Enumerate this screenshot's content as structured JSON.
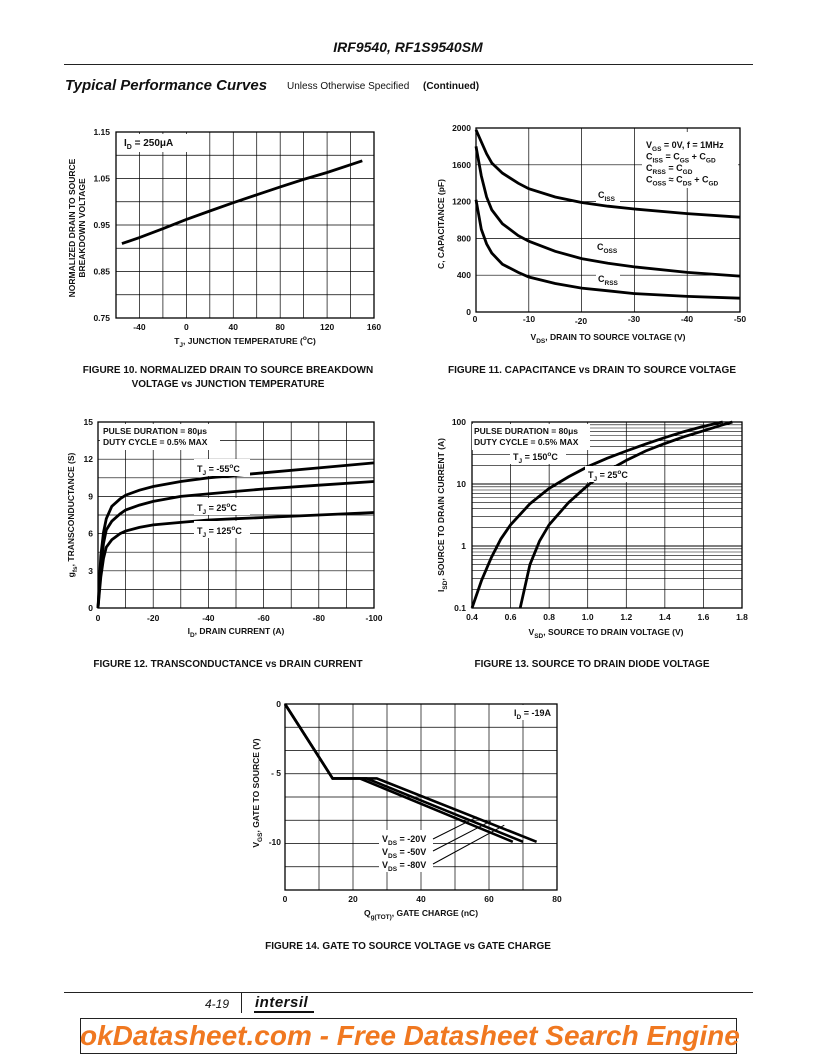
{
  "header": {
    "title": "IRF9540, RF1S9540SM"
  },
  "section": {
    "title": "Typical Performance Curves",
    "subtitle": "Unless Otherwise Specified",
    "continued": "(Continued)"
  },
  "fig10": {
    "caption": "FIGURE 10.  NORMALIZED DRAIN TO SOURCE BREAKDOWN\nVOLTAGE vs JUNCTION TEMPERATURE",
    "ylabel1": "NORMALIZED DRAIN TO SOURCE",
    "ylabel2": "BREAKDOWN VOLTAGE",
    "xlabel_prefix": "T",
    "xlabel_sub": "J",
    "xlabel_mid": ", JUNCTION TEMPERATURE (",
    "xlabel_sup": "o",
    "xlabel_end": "C)",
    "annot_prefix": "I",
    "annot_sub": "D",
    "annot_end": " = 250μA",
    "yticks": [
      "1.15",
      "1.05",
      "0.95",
      "0.85",
      "0.75"
    ],
    "xticks": [
      "-40",
      "0",
      "40",
      "80",
      "120",
      "160"
    ]
  },
  "fig11": {
    "caption": "FIGURE 11.  CAPACITANCE vs DRAIN TO SOURCE VOLTAGE",
    "ylabel": "C, CAPACITANCE (pF)",
    "xlabel_prefix": "V",
    "xlabel_sub": "DS",
    "xlabel_end": ", DRAIN TO SOURCE VOLTAGE (V)",
    "yticks": [
      "2000",
      "1600",
      "1200",
      "800",
      "400",
      "0"
    ],
    "xticks": [
      "0",
      "-10",
      "-20",
      "-30",
      "-40",
      "-50"
    ],
    "legend": [
      {
        "a": "V",
        "as": "GS",
        "b": " = 0V, f = 1MHz"
      },
      {
        "a": "C",
        "as": "ISS",
        "b": " = C",
        "bs": "GS",
        "c": " + C",
        "cs": "GD"
      },
      {
        "a": "C",
        "as": "RSS",
        "b": " = C",
        "bs": "GD"
      },
      {
        "a": "C",
        "as": "OSS",
        "b": " ≈ C",
        "bs": "DS",
        "c": " + C",
        "cs": "GD"
      }
    ],
    "curve_labels": [
      {
        "a": "C",
        "as": "ISS"
      },
      {
        "a": "C",
        "as": "OSS"
      },
      {
        "a": "C",
        "as": "RSS"
      }
    ]
  },
  "fig12": {
    "caption": "FIGURE 12.  TRANSCONDUCTANCE vs DRAIN CURRENT",
    "ylabel_prefix": "g",
    "ylabel_sub": "fs",
    "ylabel_end": ", TRANSCONDUCTANCE (S)",
    "xlabel_prefix": "I",
    "xlabel_sub": "D",
    "xlabel_end": ", DRAIN CURRENT (A)",
    "note1": "PULSE DURATION = 80μs",
    "note2": "DUTY CYCLE = 0.5% MAX",
    "yticks": [
      "15",
      "12",
      "9",
      "6",
      "3",
      "0"
    ],
    "xticks": [
      "0",
      "-20",
      "-40",
      "-60",
      "-80",
      "-100"
    ],
    "curves": [
      {
        "pre": "T",
        "sub": "J",
        "mid": " = -55",
        "sup": "o",
        "end": "C"
      },
      {
        "pre": "T",
        "sub": "J",
        "mid": " = 25",
        "sup": "o",
        "end": "C"
      },
      {
        "pre": "T",
        "sub": "J",
        "mid": " = 125",
        "sup": "o",
        "end": "C"
      }
    ]
  },
  "fig13": {
    "caption": "FIGURE 13.  SOURCE TO DRAIN DIODE VOLTAGE",
    "ylabel_prefix": "I",
    "ylabel_sub": "SD",
    "ylabel_end": ", SOURCE TO DRAIN CURRENT (A)",
    "xlabel_prefix": "V",
    "xlabel_sub": "SD",
    "xlabel_end": ", SOURCE TO DRAIN VOLTAGE (V)",
    "note1": "PULSE DURATION = 80μs",
    "note2": "DUTY CYCLE = 0.5% MAX",
    "yticks": [
      "100",
      "10",
      "1",
      "0.1"
    ],
    "xticks": [
      "0.4",
      "0.6",
      "0.8",
      "1.0",
      "1.2",
      "1.4",
      "1.6",
      "1.8"
    ],
    "curves": [
      {
        "pre": "T",
        "sub": "J",
        "mid": " = 150",
        "sup": "o",
        "end": "C"
      },
      {
        "pre": "T",
        "sub": "J",
        "mid": " = 25",
        "sup": "o",
        "end": "C"
      }
    ]
  },
  "fig14": {
    "caption": "FIGURE 14.  GATE TO SOURCE VOLTAGE vs GATE CHARGE",
    "ylabel_prefix": "V",
    "ylabel_sub": "GS",
    "ylabel_end": ", GATE TO SOURCE (V)",
    "xlabel_prefix": "Q",
    "xlabel_sub": "g(TOT)",
    "xlabel_end": ", GATE CHARGE (nC)",
    "annot_prefix": "I",
    "annot_sub": "D",
    "annot_end": " = -19A",
    "yticks": [
      "0",
      "- 5",
      "-10"
    ],
    "xticks": [
      "0",
      "20",
      "40",
      "60",
      "80"
    ],
    "curves": [
      {
        "pre": "V",
        "sub": "DS",
        "end": " = -20V"
      },
      {
        "pre": "V",
        "sub": "DS",
        "end": " = -50V"
      },
      {
        "pre": "V",
        "sub": "DS",
        "end": " = -80V"
      }
    ]
  },
  "footer": {
    "page": "4-19",
    "logo": "intersil",
    "banner": "okDatasheet.com - Free Datasheet Search Engine"
  },
  "chart_data": [
    {
      "type": "line",
      "title": "FIGURE 10. NORMALIZED DRAIN TO SOURCE BREAKDOWN VOLTAGE vs JUNCTION TEMPERATURE",
      "xlabel": "TJ, JUNCTION TEMPERATURE (oC)",
      "ylabel": "NORMALIZED DRAIN TO SOURCE BREAKDOWN VOLTAGE",
      "xlim": [
        -60,
        160
      ],
      "ylim": [
        0.75,
        1.15
      ],
      "series": [
        {
          "name": "ID = 250uA",
          "x": [
            -55,
            -40,
            -20,
            0,
            20,
            40,
            60,
            80,
            100,
            120,
            150
          ],
          "y": [
            0.91,
            0.923,
            0.942,
            0.962,
            0.98,
            0.998,
            1.015,
            1.032,
            1.048,
            1.063,
            1.088
          ]
        }
      ]
    },
    {
      "type": "line",
      "title": "FIGURE 11. CAPACITANCE vs DRAIN TO SOURCE VOLTAGE",
      "xlabel": "VDS, DRAIN TO SOURCE VOLTAGE (V)",
      "ylabel": "C, CAPACITANCE (pF)",
      "xlim": [
        0,
        -50
      ],
      "ylim": [
        0,
        2000
      ],
      "series": [
        {
          "name": "CISS",
          "x": [
            0,
            -1,
            -2,
            -3,
            -5,
            -8,
            -10,
            -15,
            -20,
            -25,
            -30,
            -40,
            -50
          ],
          "y": [
            1980,
            1850,
            1720,
            1620,
            1510,
            1400,
            1340,
            1250,
            1190,
            1150,
            1120,
            1070,
            1030
          ]
        },
        {
          "name": "COSS",
          "x": [
            0,
            -1,
            -2,
            -3,
            -5,
            -8,
            -10,
            -15,
            -20,
            -25,
            -30,
            -40,
            -50
          ],
          "y": [
            1800,
            1480,
            1250,
            1110,
            960,
            830,
            770,
            660,
            580,
            530,
            490,
            430,
            390
          ]
        },
        {
          "name": "CRSS",
          "x": [
            0,
            -1,
            -2,
            -3,
            -5,
            -8,
            -10,
            -15,
            -20,
            -25,
            -30,
            -40,
            -50
          ],
          "y": [
            1220,
            900,
            740,
            640,
            520,
            430,
            380,
            310,
            260,
            230,
            200,
            170,
            150
          ]
        }
      ]
    },
    {
      "type": "line",
      "title": "FIGURE 12. TRANSCONDUCTANCE vs DRAIN CURRENT",
      "xlabel": "ID, DRAIN CURRENT (A)",
      "ylabel": "gfs, TRANSCONDUCTANCE (S)",
      "xlim": [
        0,
        -100
      ],
      "ylim": [
        0,
        15
      ],
      "series": [
        {
          "name": "TJ = -55oC",
          "x": [
            0,
            -1,
            -2,
            -3,
            -5,
            -8,
            -10,
            -15,
            -20,
            -30,
            -40,
            -50,
            -60,
            -80,
            -100
          ],
          "y": [
            0,
            4.2,
            6.1,
            7.2,
            8.2,
            8.8,
            9.1,
            9.5,
            9.8,
            10.2,
            10.5,
            10.7,
            10.9,
            11.3,
            11.7
          ]
        },
        {
          "name": "TJ = 25oC",
          "x": [
            0,
            -1,
            -2,
            -3,
            -5,
            -8,
            -10,
            -15,
            -20,
            -30,
            -40,
            -50,
            -60,
            -80,
            -100
          ],
          "y": [
            0,
            3.3,
            5.2,
            6.3,
            7.0,
            7.6,
            7.9,
            8.3,
            8.6,
            9.0,
            9.2,
            9.4,
            9.6,
            9.9,
            10.2
          ]
        },
        {
          "name": "TJ = 125oC",
          "x": [
            0,
            -1,
            -2,
            -3,
            -5,
            -8,
            -10,
            -15,
            -20,
            -30,
            -40,
            -50,
            -60,
            -80,
            -100
          ],
          "y": [
            0,
            2.5,
            4.0,
            4.9,
            5.5,
            6.0,
            6.2,
            6.5,
            6.7,
            6.9,
            7.1,
            7.2,
            7.3,
            7.5,
            7.7
          ]
        }
      ]
    },
    {
      "type": "line",
      "title": "FIGURE 13. SOURCE TO DRAIN DIODE VOLTAGE",
      "xlabel": "VSD, SOURCE TO DRAIN VOLTAGE (V)",
      "ylabel": "ISD, SOURCE TO DRAIN CURRENT (A)",
      "xlim": [
        0.4,
        1.8
      ],
      "ylim": [
        0.1,
        100
      ],
      "yscale": "log",
      "series": [
        {
          "name": "TJ = 150oC",
          "x": [
            0.4,
            0.45,
            0.5,
            0.55,
            0.6,
            0.7,
            0.8,
            0.9,
            1.0,
            1.1,
            1.2,
            1.3,
            1.4,
            1.5,
            1.6,
            1.7
          ],
          "y": [
            0.1,
            0.28,
            0.65,
            1.3,
            2.2,
            4.8,
            8.5,
            13,
            19,
            26,
            34,
            44,
            56,
            70,
            85,
            100
          ]
        },
        {
          "name": "TJ = 25oC",
          "x": [
            0.65,
            0.7,
            0.75,
            0.8,
            0.9,
            1.0,
            1.1,
            1.2,
            1.3,
            1.4,
            1.5,
            1.6,
            1.7,
            1.75
          ],
          "y": [
            0.1,
            0.5,
            1.2,
            2.2,
            5,
            9.5,
            16,
            24,
            34,
            45,
            58,
            72,
            90,
            100
          ]
        }
      ]
    },
    {
      "type": "line",
      "title": "FIGURE 14. GATE TO SOURCE VOLTAGE vs GATE CHARGE",
      "xlabel": "Qg(TOT), GATE CHARGE (nC)",
      "ylabel": "VGS, GATE TO SOURCE (V)",
      "xlim": [
        0,
        80
      ],
      "ylim": [
        -13.5,
        0
      ],
      "series": [
        {
          "name": "VDS = -20V",
          "x": [
            0,
            14,
            22,
            67
          ],
          "y": [
            0,
            -5.4,
            -5.4,
            -10
          ]
        },
        {
          "name": "VDS = -50V",
          "x": [
            0,
            14,
            24,
            70
          ],
          "y": [
            0,
            -5.4,
            -5.4,
            -10
          ]
        },
        {
          "name": "VDS = -80V",
          "x": [
            0,
            14,
            27,
            74
          ],
          "y": [
            0,
            -5.4,
            -5.4,
            -10
          ]
        }
      ]
    }
  ]
}
